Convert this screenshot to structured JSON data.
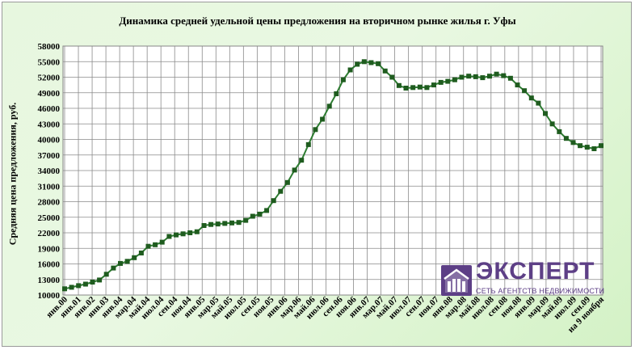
{
  "colors": {
    "line": "#2e7d32",
    "marker": "#1f5c1f",
    "grid": "#8a8a8a",
    "logo": "#5d3f86"
  },
  "logo": {
    "name": "ЭКСПЕРТ",
    "tagline": "СЕТЬ АГЕНТСТВ НЕДВИЖИМОСТИ",
    "icon": "house-grid-icon"
  },
  "chart_data": {
    "type": "line",
    "title": "Динамика средней удельной цены предложения на вторичном рынке жилья г. Уфы",
    "ylabel": "Средняя цена предложения, руб.",
    "xlabel": "",
    "ylim": [
      10000,
      58000
    ],
    "yticks": [
      10000,
      13000,
      16000,
      19000,
      22000,
      25000,
      28000,
      31000,
      34000,
      37000,
      40000,
      43000,
      46000,
      49000,
      52000,
      55000,
      58000
    ],
    "grid": true,
    "legend": "none",
    "xtick_labels": [
      "янв.00",
      "янв.01",
      "янв.02",
      "янв.03",
      "янв.04",
      "мар.04",
      "май.04",
      "июл.04",
      "сен.04",
      "ноя.04",
      "янв.05",
      "мар.05",
      "май.05",
      "июл.05",
      "сен.05",
      "ноя.05",
      "янв.06",
      "мар.06",
      "май.06",
      "июл.06",
      "сен.06",
      "ноя.06",
      "янв.07",
      "мар.07",
      "май.07",
      "июл.07",
      "сен.07",
      "ноя.07",
      "янв.08",
      "мар.08",
      "май.08",
      "июл.08",
      "сен.08",
      "ноя.08",
      "янв.09",
      "мар.09",
      "май.09",
      "июл.09",
      "сен.09",
      "на 9 ноября"
    ],
    "series": [
      {
        "values": [
          11200,
          11500,
          11800,
          12100,
          12500,
          12900,
          14000,
          15200,
          16100,
          16500,
          17200,
          18100,
          19400,
          19700,
          20200,
          21300,
          21600,
          21800,
          22000,
          22200,
          23400,
          23600,
          23700,
          23800,
          23900,
          24000,
          24400,
          25200,
          25600,
          26300,
          28200,
          30000,
          31700,
          34100,
          36000,
          39000,
          41900,
          43900,
          46400,
          48800,
          51500,
          53400,
          54500,
          55000,
          54800,
          54600,
          53200,
          52000,
          50400,
          49900,
          50000,
          50100,
          50000,
          50500,
          51000,
          51200,
          51500,
          52000,
          52200,
          52100,
          51900,
          52200,
          52600,
          52300,
          51800,
          50500,
          49400,
          48000,
          47000,
          45000,
          43000,
          41500,
          40200,
          39400,
          38800,
          38500,
          38200,
          38800
        ]
      }
    ]
  }
}
